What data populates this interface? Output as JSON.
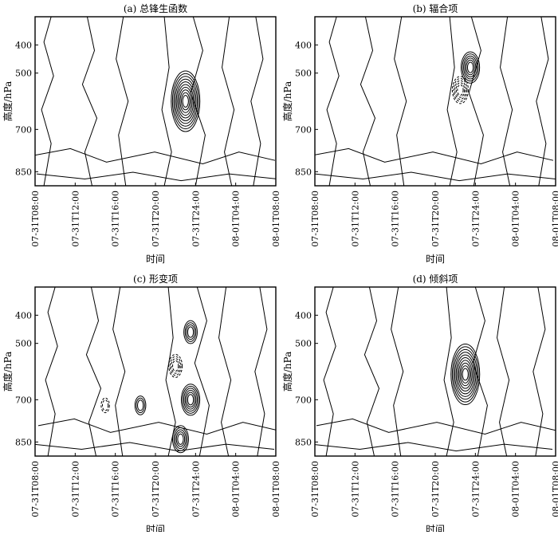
{
  "chart_data": [
    {
      "type": "contour",
      "title": "(a) 总锋生函数",
      "xlabel": "时间",
      "ylabel": "高度/hPa",
      "x_ticks": [
        "07-31T08:00",
        "07-31T12:00",
        "07-31T16:00",
        "07-31T20:00",
        "07-31T24:00",
        "08-01T04:00",
        "08-01T08:00"
      ],
      "y_ticks": [
        "400",
        "500",
        "700",
        "850"
      ],
      "features": [
        {
          "sign": "pos",
          "x": "07-31T23:00",
          "y": 600,
          "levels": 10
        }
      ]
    },
    {
      "type": "contour",
      "title": "(b) 辐合项",
      "xlabel": "时间",
      "ylabel": "高度/hPa",
      "x_ticks": [
        "07-31T08:00",
        "07-31T12:00",
        "07-31T16:00",
        "07-31T20:00",
        "07-31T24:00",
        "08-01T04:00",
        "08-01T08:00"
      ],
      "y_ticks": [
        "400",
        "500",
        "700",
        "850"
      ],
      "features": [
        {
          "sign": "pos",
          "x": "07-31T23:30",
          "y": 480,
          "levels": 6
        },
        {
          "sign": "neg",
          "x": "07-31T22:30",
          "y": 560,
          "levels": 5
        }
      ]
    },
    {
      "type": "contour",
      "title": "(c) 形变项",
      "xlabel": "时间",
      "ylabel": "高度/hPa",
      "x_ticks": [
        "07-31T08:00",
        "07-31T12:00",
        "07-31T16:00",
        "07-31T20:00",
        "07-31T24:00",
        "08-01T04:00",
        "08-01T08:00"
      ],
      "y_ticks": [
        "400",
        "500",
        "700",
        "850"
      ],
      "features": [
        {
          "sign": "pos",
          "x": "07-31T23:30",
          "y": 460,
          "levels": 4
        },
        {
          "sign": "pos",
          "x": "07-31T23:30",
          "y": 700,
          "levels": 6
        },
        {
          "sign": "pos",
          "x": "07-31T22:30",
          "y": 840,
          "levels": 5
        },
        {
          "sign": "pos",
          "x": "07-31T18:30",
          "y": 720,
          "levels": 3
        },
        {
          "sign": "neg",
          "x": "07-31T22:00",
          "y": 580,
          "levels": 4
        },
        {
          "sign": "neg",
          "x": "07-31T15:00",
          "y": 720,
          "levels": 2
        }
      ]
    },
    {
      "type": "contour",
      "title": "(d) 倾斜项",
      "xlabel": "时间",
      "ylabel": "高度/hPa",
      "x_ticks": [
        "07-31T08:00",
        "07-31T12:00",
        "07-31T16:00",
        "07-31T20:00",
        "07-31T24:00",
        "08-01T04:00",
        "08-01T08:00"
      ],
      "y_ticks": [
        "400",
        "500",
        "700",
        "850"
      ],
      "features": [
        {
          "sign": "pos",
          "x": "07-31T23:00",
          "y": 610,
          "levels": 10
        }
      ]
    }
  ]
}
